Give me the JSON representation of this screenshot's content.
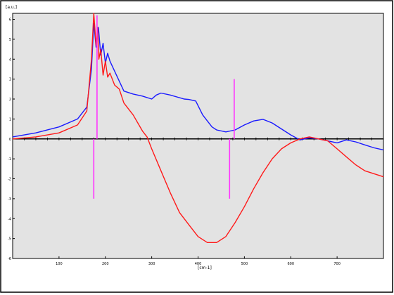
{
  "chart_data": {
    "type": "line",
    "title": "",
    "xlabel": "[cm-1]",
    "ylabel": "[a.u.]",
    "xlim": [
      0,
      800
    ],
    "ylim": [
      -6,
      6.3
    ],
    "xticks": [
      100,
      200,
      300,
      400,
      500,
      600,
      700
    ],
    "yticks": [
      -6,
      -5,
      -4,
      -3,
      -2,
      -1,
      0,
      1,
      2,
      3,
      4,
      5,
      6
    ],
    "xtick_labels": [
      "100",
      "200",
      "300",
      "400",
      "500",
      "600",
      "700"
    ],
    "ytick_labels": [
      "-6",
      "-5",
      "-4",
      "-3",
      "-2",
      "-1",
      "0",
      "1",
      "2",
      "3",
      "4",
      "5",
      "6"
    ],
    "grid": false,
    "legend": "none",
    "background": "#e3e3e3",
    "series": [
      {
        "color": "#1a1aff",
        "x": [
          0,
          50,
          100,
          140,
          160,
          170,
          175,
          180,
          185,
          190,
          195,
          200,
          205,
          210,
          220,
          240,
          260,
          280,
          300,
          310,
          320,
          340,
          370,
          380,
          395,
          410,
          420,
          430,
          440,
          460,
          480,
          500,
          520,
          540,
          560,
          580,
          600,
          620,
          640,
          660,
          680,
          700,
          720,
          740,
          760,
          780,
          800
        ],
        "y": [
          0.1,
          0.3,
          0.6,
          1.0,
          1.6,
          3.5,
          5.8,
          4.6,
          5.6,
          4.2,
          4.8,
          3.8,
          4.3,
          3.9,
          3.4,
          2.4,
          2.25,
          2.15,
          2.0,
          2.2,
          2.3,
          2.2,
          2.0,
          1.98,
          1.9,
          1.2,
          0.9,
          0.6,
          0.45,
          0.35,
          0.45,
          0.7,
          0.9,
          0.98,
          0.8,
          0.5,
          0.2,
          -0.05,
          0.05,
          0.0,
          -0.1,
          -0.2,
          -0.05,
          -0.15,
          -0.3,
          -0.45,
          -0.55
        ]
      },
      {
        "color": "#ff1a1a",
        "x": [
          0,
          50,
          100,
          140,
          160,
          170,
          175,
          180,
          183,
          186,
          190,
          195,
          200,
          205,
          210,
          220,
          230,
          240,
          250,
          260,
          270,
          280,
          290,
          300,
          320,
          340,
          360,
          380,
          400,
          420,
          440,
          460,
          480,
          500,
          520,
          540,
          560,
          580,
          600,
          620,
          640,
          660,
          680,
          700,
          720,
          740,
          760,
          780,
          800
        ],
        "y": [
          0.0,
          0.1,
          0.3,
          0.7,
          1.4,
          4.0,
          6.3,
          4.7,
          5.6,
          4.0,
          4.5,
          3.2,
          3.9,
          3.1,
          3.3,
          2.7,
          2.5,
          1.8,
          1.5,
          1.2,
          0.8,
          0.4,
          0.1,
          -0.5,
          -1.6,
          -2.7,
          -3.7,
          -4.3,
          -4.9,
          -5.2,
          -5.2,
          -4.9,
          -4.2,
          -3.4,
          -2.5,
          -1.7,
          -1.0,
          -0.5,
          -0.2,
          0.0,
          0.1,
          0.0,
          -0.1,
          -0.5,
          -0.9,
          -1.3,
          -1.6,
          -1.75,
          -1.9
        ]
      }
    ],
    "markers": [
      {
        "color": "#ff33ff",
        "x": 175,
        "y1": -3.0,
        "y2": 0
      },
      {
        "color": "#ff33ff",
        "x": 182,
        "y1": 0,
        "y2": 6.2
      },
      {
        "color": "#ff33ff",
        "x": 468,
        "y1": -3.0,
        "y2": 0
      },
      {
        "color": "#ff33ff",
        "x": 478,
        "y1": 0,
        "y2": 3.0
      }
    ]
  }
}
